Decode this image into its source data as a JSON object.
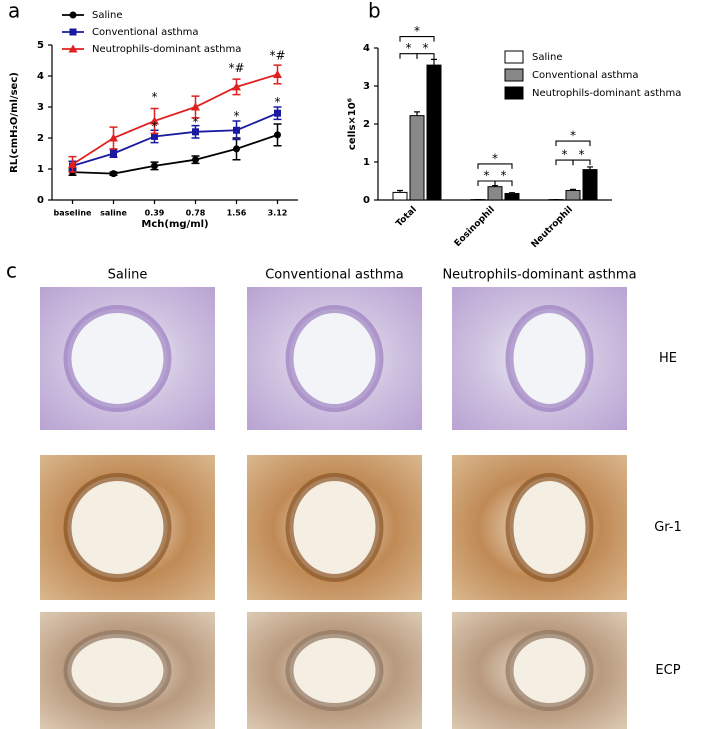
{
  "panel_labels": [
    "a",
    "b",
    "c"
  ],
  "chart_data": [
    {
      "type": "line",
      "x_label": "Mch(mg/ml)",
      "y_label": "RL(cmH₂O/ml/sec)",
      "categories": [
        "baseline",
        "saline",
        "0.39",
        "0.78",
        "1.56",
        "3.12"
      ],
      "ylim": [
        0,
        5
      ],
      "yticks": [
        0,
        1,
        2,
        3,
        4,
        5
      ],
      "legend": "upper-left",
      "series": [
        {
          "name": "Saline",
          "color": "#000000",
          "marker": "circle",
          "values": [
            0.9,
            0.85,
            1.1,
            1.3,
            1.65,
            2.1
          ],
          "errors": [
            0.1,
            0.05,
            0.12,
            0.12,
            0.35,
            0.35
          ]
        },
        {
          "name": "Conventional asthma",
          "color": "#1a1aa0",
          "marker": "square",
          "values": [
            1.1,
            1.5,
            2.05,
            2.2,
            2.25,
            2.8
          ],
          "errors": [
            0.15,
            0.12,
            0.2,
            0.2,
            0.3,
            0.2
          ]
        },
        {
          "name": "Neutrophils-dominant asthma",
          "color": "#e02020",
          "marker": "triangle",
          "values": [
            1.15,
            2.0,
            2.55,
            3.0,
            3.65,
            4.05
          ],
          "errors": [
            0.25,
            0.35,
            0.4,
            0.35,
            0.25,
            0.3
          ]
        }
      ],
      "annotations": [
        {
          "text": "*",
          "x": "0.39",
          "y": 3.3
        },
        {
          "text": "*",
          "x": "0.39",
          "y": 2.35
        },
        {
          "text": "*",
          "x": "0.78",
          "y": 2.5
        },
        {
          "text": "*#",
          "x": "1.56",
          "y": 4.25
        },
        {
          "text": "*",
          "x": "1.56",
          "y": 2.7
        },
        {
          "text": "*#",
          "x": "3.12",
          "y": 4.65
        },
        {
          "text": "*",
          "x": "3.12",
          "y": 3.15
        }
      ]
    },
    {
      "type": "bar",
      "y_label": "cells×10⁶",
      "categories": [
        "Total",
        "Eosinophil",
        "Neutrophil"
      ],
      "ylim": [
        0,
        4
      ],
      "yticks": [
        0,
        1,
        2,
        3,
        4
      ],
      "legend": "upper-right",
      "series": [
        {
          "name": "Saline",
          "color": "#ffffff",
          "values": [
            0.2,
            0.01,
            0.01
          ],
          "errors": [
            0.05,
            0,
            0
          ]
        },
        {
          "name": "Conventional asthma",
          "color": "#888888",
          "values": [
            2.22,
            0.35,
            0.25
          ],
          "errors": [
            0.1,
            0.03,
            0.03
          ]
        },
        {
          "name": "Neutrophils-dominant asthma",
          "color": "#000000",
          "values": [
            3.55,
            0.17,
            0.8
          ],
          "errors": [
            0.15,
            0.02,
            0.07
          ]
        }
      ],
      "annotations": [
        {
          "text": "*",
          "category": "Total",
          "between": [
            "Saline",
            "Conventional asthma"
          ],
          "y": 3.85
        },
        {
          "text": "*",
          "category": "Total",
          "between": [
            "Conventional asthma",
            "Neutrophils-dominant asthma"
          ],
          "y": 3.85
        },
        {
          "text": "*",
          "category": "Total",
          "between": [
            "Saline",
            "Neutrophils-dominant asthma"
          ],
          "y": 4.3
        },
        {
          "text": "*",
          "category": "Eosinophil",
          "between": [
            "Saline",
            "Conventional asthma"
          ],
          "y": 0.5
        },
        {
          "text": "*",
          "category": "Eosinophil",
          "between": [
            "Conventional asthma",
            "Neutrophils-dominant asthma"
          ],
          "y": 0.5
        },
        {
          "text": "*",
          "category": "Eosinophil",
          "between": [
            "Saline",
            "Neutrophils-dominant asthma"
          ],
          "y": 0.95
        },
        {
          "text": "*",
          "category": "Neutrophil",
          "between": [
            "Saline",
            "Conventional asthma"
          ],
          "y": 1.05
        },
        {
          "text": "*",
          "category": "Neutrophil",
          "between": [
            "Conventional asthma",
            "Neutrophils-dominant asthma"
          ],
          "y": 1.05
        },
        {
          "text": "*",
          "category": "Neutrophil",
          "between": [
            "Saline",
            "Neutrophils-dominant asthma"
          ],
          "y": 1.55
        }
      ]
    }
  ],
  "histology": {
    "columns": [
      "Saline",
      "Conventional asthma",
      "Neutrophils-dominant asthma"
    ],
    "rows": [
      "HE",
      "Gr-1",
      "ECP"
    ]
  }
}
